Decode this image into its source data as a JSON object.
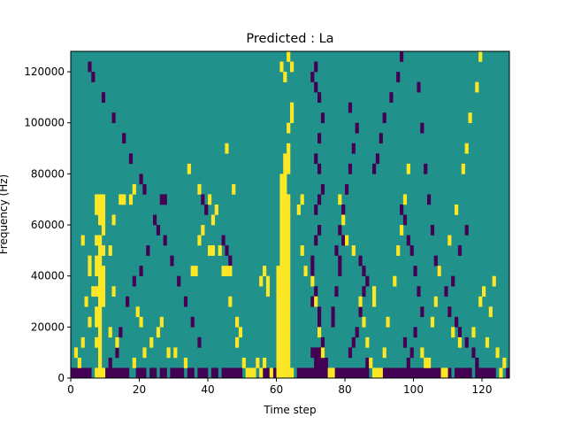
{
  "chart_data": {
    "type": "heatmap",
    "title": "Predicted : La",
    "xlabel": "Time step",
    "ylabel": "Frequency (Hz)",
    "xlim": [
      0,
      128
    ],
    "ylim": [
      0,
      128000
    ],
    "x_ticks": [
      0,
      20,
      40,
      60,
      80,
      100,
      120
    ],
    "y_ticks": [
      0,
      20000,
      40000,
      60000,
      80000,
      100000,
      120000
    ],
    "x_tick_labels": [
      "0",
      "20",
      "40",
      "60",
      "80",
      "100",
      "120"
    ],
    "y_tick_labels": [
      "0",
      "20000",
      "40000",
      "60000",
      "80000",
      "100000",
      "120000"
    ],
    "grid": false,
    "colormap": "viridis",
    "colors": {
      "background": "#21918c",
      "low": "#440154",
      "high": "#fde725"
    },
    "cell_size": {
      "time_steps": 1,
      "frequency_hz": 4000
    },
    "yellow_cells": [
      [
        7,
        17
      ],
      [
        8,
        17
      ],
      [
        9,
        17
      ],
      [
        7,
        16
      ],
      [
        8,
        16
      ],
      [
        9,
        16
      ],
      [
        8,
        15
      ],
      [
        9,
        15
      ],
      [
        9,
        14
      ],
      [
        7,
        13
      ],
      [
        8,
        13
      ],
      [
        8,
        12
      ],
      [
        9,
        12
      ],
      [
        7,
        11
      ],
      [
        8,
        11
      ],
      [
        7,
        10
      ],
      [
        8,
        10
      ],
      [
        9,
        10
      ],
      [
        8,
        9
      ],
      [
        9,
        9
      ],
      [
        7,
        8
      ],
      [
        8,
        8
      ],
      [
        9,
        8
      ],
      [
        8,
        7
      ],
      [
        9,
        7
      ],
      [
        7,
        6
      ],
      [
        8,
        6
      ],
      [
        7,
        5
      ],
      [
        8,
        5
      ],
      [
        8,
        4
      ],
      [
        7,
        3
      ],
      [
        8,
        3
      ],
      [
        8,
        2
      ],
      [
        8,
        1
      ],
      [
        7,
        0
      ],
      [
        8,
        0
      ],
      [
        9,
        0
      ],
      [
        3,
        13
      ],
      [
        5,
        11
      ],
      [
        5,
        10
      ],
      [
        6,
        8
      ],
      [
        4,
        7
      ],
      [
        5,
        5
      ],
      [
        3,
        3
      ],
      [
        1,
        2
      ],
      [
        2,
        1
      ],
      [
        11,
        12
      ],
      [
        12,
        15
      ],
      [
        14,
        17
      ],
      [
        15,
        17
      ],
      [
        17,
        17
      ],
      [
        18,
        18
      ],
      [
        12,
        8
      ],
      [
        11,
        4
      ],
      [
        13,
        3
      ],
      [
        18,
        1
      ],
      [
        19,
        6
      ],
      [
        20,
        5
      ],
      [
        21,
        2
      ],
      [
        23,
        3
      ],
      [
        25,
        4
      ],
      [
        26,
        5
      ],
      [
        28,
        2
      ],
      [
        30,
        2
      ],
      [
        33,
        1
      ],
      [
        35,
        10
      ],
      [
        36,
        10
      ],
      [
        37,
        13
      ],
      [
        38,
        14
      ],
      [
        40,
        12
      ],
      [
        41,
        12
      ],
      [
        43,
        12
      ],
      [
        44,
        10
      ],
      [
        45,
        10
      ],
      [
        46,
        10
      ],
      [
        46,
        7
      ],
      [
        48,
        5
      ],
      [
        50,
        1
      ],
      [
        51,
        0
      ],
      [
        52,
        0
      ],
      [
        53,
        0
      ],
      [
        49,
        4
      ],
      [
        40,
        17
      ],
      [
        37,
        18
      ],
      [
        34,
        20
      ],
      [
        41,
        15
      ],
      [
        42,
        16
      ],
      [
        45,
        22
      ],
      [
        47,
        18
      ],
      [
        48,
        3
      ],
      [
        56,
        10
      ],
      [
        57,
        9
      ],
      [
        57,
        8
      ],
      [
        55,
        9
      ],
      [
        56,
        1
      ],
      [
        54,
        1
      ],
      [
        55,
        0
      ],
      [
        58,
        0
      ],
      [
        60,
        0
      ],
      [
        61,
        0
      ],
      [
        62,
        0
      ],
      [
        63,
        0
      ],
      [
        60,
        1
      ],
      [
        61,
        1
      ],
      [
        62,
        1
      ],
      [
        63,
        1
      ],
      [
        60,
        2
      ],
      [
        61,
        2
      ],
      [
        62,
        2
      ],
      [
        63,
        2
      ],
      [
        60,
        3
      ],
      [
        61,
        3
      ],
      [
        62,
        3
      ],
      [
        63,
        3
      ],
      [
        60,
        4
      ],
      [
        61,
        4
      ],
      [
        62,
        4
      ],
      [
        63,
        4
      ],
      [
        60,
        5
      ],
      [
        61,
        5
      ],
      [
        62,
        5
      ],
      [
        63,
        5
      ],
      [
        60,
        6
      ],
      [
        61,
        6
      ],
      [
        62,
        6
      ],
      [
        63,
        6
      ],
      [
        60,
        7
      ],
      [
        61,
        7
      ],
      [
        62,
        7
      ],
      [
        63,
        7
      ],
      [
        60,
        8
      ],
      [
        61,
        8
      ],
      [
        62,
        8
      ],
      [
        63,
        8
      ],
      [
        60,
        9
      ],
      [
        61,
        9
      ],
      [
        62,
        9
      ],
      [
        63,
        9
      ],
      [
        60,
        10
      ],
      [
        61,
        10
      ],
      [
        62,
        10
      ],
      [
        63,
        10
      ],
      [
        61,
        11
      ],
      [
        62,
        11
      ],
      [
        63,
        11
      ],
      [
        61,
        12
      ],
      [
        62,
        12
      ],
      [
        63,
        12
      ],
      [
        61,
        13
      ],
      [
        62,
        13
      ],
      [
        63,
        13
      ],
      [
        61,
        14
      ],
      [
        62,
        14
      ],
      [
        63,
        14
      ],
      [
        61,
        15
      ],
      [
        62,
        15
      ],
      [
        63,
        15
      ],
      [
        61,
        16
      ],
      [
        62,
        16
      ],
      [
        63,
        16
      ],
      [
        61,
        17
      ],
      [
        62,
        17
      ],
      [
        63,
        17
      ],
      [
        61,
        18
      ],
      [
        62,
        18
      ],
      [
        61,
        19
      ],
      [
        62,
        19
      ],
      [
        62,
        20
      ],
      [
        63,
        20
      ],
      [
        62,
        21
      ],
      [
        63,
        21
      ],
      [
        63,
        22
      ],
      [
        63,
        24
      ],
      [
        64,
        25
      ],
      [
        64,
        26
      ],
      [
        62,
        29
      ],
      [
        61,
        30
      ],
      [
        63,
        31
      ],
      [
        64,
        30
      ],
      [
        63,
        1
      ],
      [
        62,
        0
      ],
      [
        64,
        0
      ],
      [
        66,
        16
      ],
      [
        67,
        17
      ],
      [
        67,
        12
      ],
      [
        68,
        10
      ],
      [
        70,
        9
      ],
      [
        71,
        7
      ],
      [
        72,
        4
      ],
      [
        73,
        2
      ],
      [
        75,
        0
      ],
      [
        76,
        0
      ],
      [
        78,
        17
      ],
      [
        79,
        15
      ],
      [
        80,
        13
      ],
      [
        82,
        12
      ],
      [
        84,
        7
      ],
      [
        85,
        5
      ],
      [
        86,
        3
      ],
      [
        87,
        1
      ],
      [
        88,
        0
      ],
      [
        89,
        0
      ],
      [
        90,
        0
      ],
      [
        88,
        7
      ],
      [
        88,
        8
      ],
      [
        91,
        2
      ],
      [
        92,
        5
      ],
      [
        94,
        9
      ],
      [
        95,
        12
      ],
      [
        96,
        14
      ],
      [
        97,
        17
      ],
      [
        98,
        20
      ],
      [
        103,
        1
      ],
      [
        105,
        5
      ],
      [
        106,
        7
      ],
      [
        107,
        10
      ],
      [
        110,
        13
      ],
      [
        112,
        16
      ],
      [
        114,
        20
      ],
      [
        115,
        22
      ],
      [
        116,
        25
      ],
      [
        118,
        28
      ],
      [
        119,
        31
      ],
      [
        121,
        3
      ],
      [
        122,
        6
      ],
      [
        123,
        9
      ],
      [
        124,
        2
      ],
      [
        125,
        0
      ],
      [
        126,
        1
      ],
      [
        117,
        4
      ],
      [
        119,
        7
      ],
      [
        120,
        8
      ],
      [
        102,
        2
      ],
      [
        104,
        1
      ],
      [
        108,
        0
      ],
      [
        109,
        0
      ],
      [
        111,
        4
      ],
      [
        113,
        3
      ]
    ],
    "purple_cells": [
      [
        0,
        0
      ],
      [
        1,
        0
      ],
      [
        2,
        0
      ],
      [
        3,
        0
      ],
      [
        4,
        0
      ],
      [
        5,
        0
      ],
      [
        10,
        0
      ],
      [
        11,
        0
      ],
      [
        12,
        0
      ],
      [
        13,
        0
      ],
      [
        14,
        0
      ],
      [
        15,
        0
      ],
      [
        16,
        0
      ],
      [
        19,
        0
      ],
      [
        20,
        0
      ],
      [
        21,
        0
      ],
      [
        23,
        0
      ],
      [
        24,
        0
      ],
      [
        26,
        0
      ],
      [
        27,
        0
      ],
      [
        29,
        0
      ],
      [
        30,
        0
      ],
      [
        31,
        0
      ],
      [
        32,
        0
      ],
      [
        34,
        0
      ],
      [
        35,
        0
      ],
      [
        37,
        0
      ],
      [
        38,
        0
      ],
      [
        39,
        0
      ],
      [
        41,
        0
      ],
      [
        42,
        0
      ],
      [
        44,
        0
      ],
      [
        45,
        0
      ],
      [
        46,
        0
      ],
      [
        47,
        0
      ],
      [
        48,
        0
      ],
      [
        49,
        0
      ],
      [
        56,
        0
      ],
      [
        57,
        0
      ],
      [
        59,
        0
      ],
      [
        66,
        0
      ],
      [
        67,
        0
      ],
      [
        68,
        0
      ],
      [
        69,
        0
      ],
      [
        70,
        0
      ],
      [
        71,
        0
      ],
      [
        72,
        0
      ],
      [
        73,
        0
      ],
      [
        74,
        0
      ],
      [
        77,
        0
      ],
      [
        78,
        0
      ],
      [
        79,
        0
      ],
      [
        80,
        0
      ],
      [
        81,
        0
      ],
      [
        82,
        0
      ],
      [
        83,
        0
      ],
      [
        84,
        0
      ],
      [
        85,
        0
      ],
      [
        86,
        0
      ],
      [
        91,
        0
      ],
      [
        92,
        0
      ],
      [
        93,
        0
      ],
      [
        94,
        0
      ],
      [
        95,
        0
      ],
      [
        96,
        0
      ],
      [
        97,
        0
      ],
      [
        98,
        0
      ],
      [
        99,
        0
      ],
      [
        100,
        0
      ],
      [
        101,
        0
      ],
      [
        102,
        0
      ],
      [
        103,
        0
      ],
      [
        104,
        0
      ],
      [
        105,
        0
      ],
      [
        106,
        0
      ],
      [
        107,
        0
      ],
      [
        110,
        0
      ],
      [
        112,
        0
      ],
      [
        113,
        0
      ],
      [
        114,
        0
      ],
      [
        115,
        0
      ],
      [
        116,
        0
      ],
      [
        118,
        0
      ],
      [
        119,
        0
      ],
      [
        120,
        0
      ],
      [
        121,
        0
      ],
      [
        122,
        0
      ],
      [
        123,
        0
      ],
      [
        127,
        0
      ],
      [
        71,
        1
      ],
      [
        72,
        1
      ],
      [
        73,
        1
      ],
      [
        74,
        1
      ],
      [
        70,
        2
      ],
      [
        71,
        2
      ],
      [
        72,
        2
      ],
      [
        73,
        3
      ],
      [
        72,
        5
      ],
      [
        72,
        6
      ],
      [
        70,
        7
      ],
      [
        71,
        8
      ],
      [
        70,
        10
      ],
      [
        70,
        11
      ],
      [
        71,
        13
      ],
      [
        72,
        14
      ],
      [
        71,
        16
      ],
      [
        72,
        17
      ],
      [
        73,
        18
      ],
      [
        72,
        20
      ],
      [
        71,
        21
      ],
      [
        72,
        23
      ],
      [
        73,
        25
      ],
      [
        71,
        28
      ],
      [
        70,
        29
      ],
      [
        72,
        27
      ],
      [
        71,
        30
      ],
      [
        76,
        5
      ],
      [
        76,
        6
      ],
      [
        77,
        8
      ],
      [
        78,
        10
      ],
      [
        78,
        11
      ],
      [
        77,
        12
      ],
      [
        79,
        13
      ],
      [
        78,
        14
      ],
      [
        79,
        16
      ],
      [
        80,
        18
      ],
      [
        81,
        20
      ],
      [
        82,
        22
      ],
      [
        83,
        24
      ],
      [
        81,
        26
      ],
      [
        84,
        11
      ],
      [
        85,
        10
      ],
      [
        86,
        9
      ],
      [
        85,
        8
      ],
      [
        84,
        6
      ],
      [
        83,
        4
      ],
      [
        82,
        3
      ],
      [
        81,
        2
      ],
      [
        86,
        1
      ],
      [
        96,
        16
      ],
      [
        97,
        15
      ],
      [
        98,
        13
      ],
      [
        99,
        12
      ],
      [
        100,
        10
      ],
      [
        101,
        8
      ],
      [
        102,
        6
      ],
      [
        100,
        4
      ],
      [
        99,
        2
      ],
      [
        98,
        1
      ],
      [
        97,
        3
      ],
      [
        26,
        17
      ],
      [
        27,
        17
      ],
      [
        38,
        17
      ],
      [
        39,
        16
      ],
      [
        44,
        13
      ],
      [
        45,
        12
      ],
      [
        46,
        11
      ],
      [
        25,
        14
      ],
      [
        22,
        12
      ],
      [
        20,
        10
      ],
      [
        18,
        9
      ],
      [
        16,
        7
      ],
      [
        14,
        4
      ],
      [
        13,
        2
      ],
      [
        11,
        1
      ],
      [
        12,
        0
      ],
      [
        5,
        30
      ],
      [
        6,
        29
      ],
      [
        9,
        27
      ],
      [
        12,
        25
      ],
      [
        15,
        23
      ],
      [
        17,
        21
      ],
      [
        20,
        19
      ],
      [
        21,
        18
      ],
      [
        24,
        15
      ],
      [
        27,
        13
      ],
      [
        29,
        11
      ],
      [
        31,
        9
      ],
      [
        33,
        7
      ],
      [
        35,
        5
      ],
      [
        37,
        3
      ],
      [
        106,
        11
      ],
      [
        107,
        10
      ],
      [
        109,
        8
      ],
      [
        110,
        6
      ],
      [
        112,
        5
      ],
      [
        113,
        4
      ],
      [
        115,
        3
      ],
      [
        117,
        2
      ],
      [
        118,
        1
      ],
      [
        105,
        14
      ],
      [
        104,
        17
      ],
      [
        103,
        20
      ],
      [
        102,
        24
      ],
      [
        101,
        28
      ],
      [
        88,
        20
      ],
      [
        89,
        21
      ],
      [
        90,
        23
      ],
      [
        91,
        25
      ],
      [
        93,
        27
      ],
      [
        95,
        29
      ],
      [
        96,
        31
      ],
      [
        111,
        9
      ],
      [
        113,
        12
      ],
      [
        115,
        14
      ]
    ]
  }
}
